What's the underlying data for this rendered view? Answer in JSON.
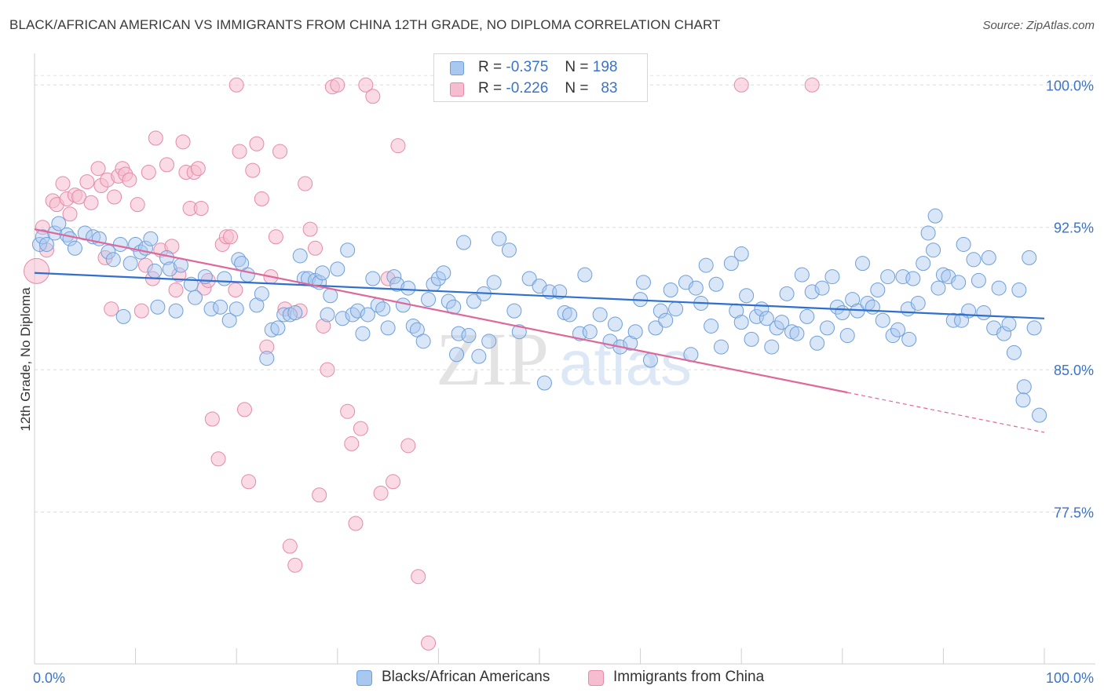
{
  "title": "BLACK/AFRICAN AMERICAN VS IMMIGRANTS FROM CHINA 12TH GRADE, NO DIPLOMA CORRELATION CHART",
  "source": "Source: ZipAtlas.com",
  "watermark": {
    "zip": "ZIP",
    "atlas": "atlas"
  },
  "legend": {
    "rows": [
      {
        "r_label": "R =",
        "r_value": "-0.375",
        "n_label": "N =",
        "n_value": "198",
        "color": "#a9c8ef",
        "border": "#6f9fd8"
      },
      {
        "r_label": "R =",
        "r_value": "-0.226",
        "n_label": "N =",
        "n_value": "83",
        "color": "#f6bdd0",
        "border": "#e58aa8"
      }
    ]
  },
  "bottom_legend": [
    {
      "label": "Blacks/African Americans",
      "color": "#a9c8ef",
      "border": "#6f9fd8"
    },
    {
      "label": "Immigrants from China",
      "color": "#f6bdd0",
      "border": "#e58aa8"
    }
  ],
  "chart_data": {
    "type": "scatter",
    "title": "BLACK/AFRICAN AMERICAN VS IMMIGRANTS FROM CHINA 12TH GRADE, NO DIPLOMA CORRELATION CHART",
    "xlabel": "",
    "ylabel": "12th Grade, No Diploma",
    "xlim": [
      0,
      100
    ],
    "ylim": [
      69.5,
      101.5
    ],
    "x_tick_labels": [
      "0.0%",
      "100.0%"
    ],
    "y_ticks": [
      {
        "value": 100.0,
        "label": "100.0%"
      },
      {
        "value": 92.5,
        "label": "92.5%"
      },
      {
        "value": 85.0,
        "label": "85.0%"
      },
      {
        "value": 77.5,
        "label": "77.5%"
      }
    ],
    "grid": "horizontal dashed",
    "legend_position": "top-center",
    "series": [
      {
        "name": "Blacks/African Americans",
        "color": "#6f9fd8",
        "fill": "#a9c8ef",
        "trend": {
          "x": [
            0,
            100
          ],
          "y": [
            90.1,
            87.7
          ]
        },
        "points": [
          [
            0.5,
            91.6
          ],
          [
            0.8,
            92.0
          ],
          [
            1.2,
            91.6
          ],
          [
            2.0,
            92.2
          ],
          [
            2.4,
            92.7
          ],
          [
            3.2,
            92.1
          ],
          [
            3.5,
            91.9
          ],
          [
            4.0,
            91.4
          ],
          [
            5.0,
            92.2
          ],
          [
            5.8,
            92.0
          ],
          [
            6.4,
            91.9
          ],
          [
            7.3,
            91.2
          ],
          [
            7.8,
            90.8
          ],
          [
            8.5,
            91.6
          ],
          [
            8.8,
            87.8
          ],
          [
            9.5,
            90.6
          ],
          [
            10.0,
            91.6
          ],
          [
            10.5,
            91.2
          ],
          [
            11.0,
            91.4
          ],
          [
            11.5,
            91.9
          ],
          [
            11.9,
            90.2
          ],
          [
            12.2,
            88.3
          ],
          [
            13.1,
            90.9
          ],
          [
            13.4,
            90.3
          ],
          [
            14.0,
            88.1
          ],
          [
            14.5,
            90.5
          ],
          [
            15.5,
            89.5
          ],
          [
            15.9,
            88.8
          ],
          [
            16.9,
            89.9
          ],
          [
            17.5,
            88.2
          ],
          [
            18.4,
            88.3
          ],
          [
            18.8,
            89.8
          ],
          [
            19.3,
            87.6
          ],
          [
            20.0,
            88.2
          ],
          [
            20.2,
            90.8
          ],
          [
            20.5,
            90.6
          ],
          [
            21.1,
            90.0
          ],
          [
            22.0,
            88.4
          ],
          [
            22.5,
            89.0
          ],
          [
            23.0,
            85.6
          ],
          [
            23.5,
            87.1
          ],
          [
            24.1,
            87.2
          ],
          [
            24.7,
            87.9
          ],
          [
            25.3,
            87.9
          ],
          [
            25.8,
            88.0
          ],
          [
            26.3,
            91.0
          ],
          [
            26.7,
            89.8
          ],
          [
            27.1,
            89.8
          ],
          [
            27.8,
            89.7
          ],
          [
            28.2,
            89.6
          ],
          [
            28.5,
            90.1
          ],
          [
            29.0,
            87.9
          ],
          [
            29.3,
            88.9
          ],
          [
            30.0,
            90.3
          ],
          [
            30.5,
            87.7
          ],
          [
            31.0,
            91.3
          ],
          [
            31.5,
            87.9
          ],
          [
            32.0,
            88.1
          ],
          [
            32.5,
            86.9
          ],
          [
            33.0,
            87.9
          ],
          [
            33.5,
            89.8
          ],
          [
            34.0,
            88.4
          ],
          [
            34.5,
            88.2
          ],
          [
            35.0,
            87.2
          ],
          [
            35.6,
            89.9
          ],
          [
            35.9,
            89.5
          ],
          [
            36.5,
            88.4
          ],
          [
            37.0,
            89.3
          ],
          [
            37.5,
            87.3
          ],
          [
            37.9,
            87.1
          ],
          [
            38.5,
            86.5
          ],
          [
            39.0,
            88.7
          ],
          [
            39.5,
            89.5
          ],
          [
            40.0,
            89.8
          ],
          [
            40.5,
            90.1
          ],
          [
            41.0,
            88.6
          ],
          [
            41.5,
            88.3
          ],
          [
            42.0,
            86.9
          ],
          [
            42.5,
            91.7
          ],
          [
            43.0,
            86.8
          ],
          [
            43.5,
            88.6
          ],
          [
            44.0,
            85.7
          ],
          [
            44.5,
            89.0
          ],
          [
            45.0,
            86.5
          ],
          [
            45.5,
            89.6
          ],
          [
            46.0,
            91.9
          ],
          [
            47.0,
            91.3
          ],
          [
            47.5,
            88.1
          ],
          [
            48.0,
            87.0
          ],
          [
            49.0,
            89.8
          ],
          [
            50.0,
            89.4
          ],
          [
            50.5,
            84.3
          ],
          [
            51.0,
            89.1
          ],
          [
            52.0,
            89.1
          ],
          [
            52.5,
            88.0
          ],
          [
            53.0,
            87.9
          ],
          [
            54.0,
            86.9
          ],
          [
            55.0,
            87.0
          ],
          [
            56.0,
            87.9
          ],
          [
            57.0,
            86.5
          ],
          [
            57.5,
            87.4
          ],
          [
            58.0,
            86.2
          ],
          [
            59.0,
            86.4
          ],
          [
            59.5,
            87.0
          ],
          [
            60.0,
            88.7
          ],
          [
            61.0,
            85.5
          ],
          [
            61.5,
            87.2
          ],
          [
            62.0,
            88.1
          ],
          [
            62.5,
            87.6
          ],
          [
            63.0,
            89.2
          ],
          [
            63.5,
            88.2
          ],
          [
            64.5,
            89.6
          ],
          [
            65.0,
            85.8
          ],
          [
            65.5,
            89.3
          ],
          [
            66.0,
            88.5
          ],
          [
            67.0,
            87.3
          ],
          [
            67.5,
            89.5
          ],
          [
            68.0,
            86.2
          ],
          [
            69.0,
            90.6
          ],
          [
            69.5,
            88.1
          ],
          [
            70.0,
            87.5
          ],
          [
            70.5,
            88.9
          ],
          [
            71.0,
            86.6
          ],
          [
            71.5,
            87.8
          ],
          [
            72.0,
            88.2
          ],
          [
            72.5,
            87.7
          ],
          [
            73.0,
            86.2
          ],
          [
            73.5,
            87.2
          ],
          [
            74.0,
            87.5
          ],
          [
            74.5,
            89.0
          ],
          [
            75.0,
            87.0
          ],
          [
            75.5,
            86.9
          ],
          [
            76.0,
            90.0
          ],
          [
            76.5,
            87.8
          ],
          [
            77.0,
            89.1
          ],
          [
            77.5,
            86.4
          ],
          [
            78.0,
            89.3
          ],
          [
            78.5,
            87.2
          ],
          [
            79.0,
            89.9
          ],
          [
            79.5,
            88.3
          ],
          [
            80.0,
            88.0
          ],
          [
            80.5,
            86.8
          ],
          [
            81.0,
            88.7
          ],
          [
            81.5,
            88.1
          ],
          [
            82.0,
            90.6
          ],
          [
            82.5,
            88.5
          ],
          [
            83.0,
            88.3
          ],
          [
            83.5,
            89.2
          ],
          [
            84.0,
            87.6
          ],
          [
            84.5,
            89.9
          ],
          [
            85.0,
            86.8
          ],
          [
            85.5,
            87.1
          ],
          [
            86.0,
            89.9
          ],
          [
            86.5,
            88.2
          ],
          [
            87.0,
            89.8
          ],
          [
            87.5,
            88.5
          ],
          [
            88.0,
            90.6
          ],
          [
            88.5,
            92.2
          ],
          [
            89.0,
            91.3
          ],
          [
            89.5,
            89.3
          ],
          [
            90.0,
            90.0
          ],
          [
            90.5,
            89.9
          ],
          [
            91.0,
            87.6
          ],
          [
            91.5,
            89.6
          ],
          [
            92.0,
            91.6
          ],
          [
            92.5,
            88.1
          ],
          [
            93.0,
            90.8
          ],
          [
            93.5,
            89.7
          ],
          [
            94.0,
            88.0
          ],
          [
            94.5,
            90.9
          ],
          [
            95.0,
            87.2
          ],
          [
            95.5,
            89.3
          ],
          [
            96.0,
            86.9
          ],
          [
            96.5,
            87.4
          ],
          [
            97.0,
            85.9
          ],
          [
            97.5,
            89.2
          ],
          [
            98.0,
            84.1
          ],
          [
            98.5,
            90.9
          ],
          [
            99.0,
            87.2
          ],
          [
            99.5,
            82.6
          ],
          [
            89.2,
            93.1
          ],
          [
            91.8,
            87.6
          ],
          [
            97.9,
            83.4
          ],
          [
            41.8,
            85.8
          ],
          [
            54.5,
            90.0
          ],
          [
            66.5,
            90.5
          ],
          [
            86.6,
            86.6
          ],
          [
            60.3,
            89.6
          ],
          [
            70.0,
            91.1
          ]
        ]
      },
      {
        "name": "Immigrants from China",
        "color": "#e58aa8",
        "fill": "#f6bdd0",
        "trend": {
          "x": [
            0,
            80.5
          ],
          "y": [
            92.4,
            83.8
          ]
        },
        "trend_dashed": {
          "x": [
            80.5,
            100
          ],
          "y": [
            83.8,
            81.7
          ]
        },
        "points": [
          [
            0.2,
            90.2
          ],
          [
            0.8,
            92.5
          ],
          [
            1.2,
            91.3
          ],
          [
            1.8,
            93.9
          ],
          [
            2.2,
            93.7
          ],
          [
            2.8,
            94.8
          ],
          [
            3.2,
            94.0
          ],
          [
            3.5,
            93.2
          ],
          [
            4.0,
            94.2
          ],
          [
            4.4,
            94.1
          ],
          [
            5.2,
            94.9
          ],
          [
            5.6,
            93.8
          ],
          [
            6.3,
            95.6
          ],
          [
            6.6,
            94.7
          ],
          [
            7.0,
            90.9
          ],
          [
            7.2,
            95.0
          ],
          [
            7.6,
            88.2
          ],
          [
            7.9,
            94.1
          ],
          [
            8.3,
            95.2
          ],
          [
            8.7,
            95.6
          ],
          [
            9.0,
            95.3
          ],
          [
            9.4,
            95.0
          ],
          [
            10.2,
            93.7
          ],
          [
            10.6,
            88.1
          ],
          [
            11.0,
            90.5
          ],
          [
            11.3,
            95.4
          ],
          [
            11.7,
            89.8
          ],
          [
            12.0,
            97.2
          ],
          [
            12.5,
            91.3
          ],
          [
            13.1,
            95.8
          ],
          [
            13.6,
            91.5
          ],
          [
            14.0,
            89.2
          ],
          [
            14.3,
            90.0
          ],
          [
            14.7,
            97.0
          ],
          [
            15.0,
            95.4
          ],
          [
            15.4,
            93.5
          ],
          [
            15.8,
            95.4
          ],
          [
            16.2,
            95.6
          ],
          [
            16.5,
            93.5
          ],
          [
            16.8,
            89.3
          ],
          [
            17.2,
            89.7
          ],
          [
            17.6,
            82.4
          ],
          [
            18.2,
            80.3
          ],
          [
            18.6,
            91.6
          ],
          [
            19.0,
            92.0
          ],
          [
            19.4,
            92.0
          ],
          [
            19.9,
            89.2
          ],
          [
            20.3,
            96.5
          ],
          [
            20.8,
            82.9
          ],
          [
            21.2,
            79.1
          ],
          [
            21.6,
            95.5
          ],
          [
            22.0,
            96.9
          ],
          [
            22.5,
            94.0
          ],
          [
            23.0,
            86.2
          ],
          [
            23.4,
            89.9
          ],
          [
            23.9,
            92.0
          ],
          [
            24.3,
            96.5
          ],
          [
            24.8,
            88.2
          ],
          [
            25.3,
            75.7
          ],
          [
            25.8,
            74.7
          ],
          [
            26.3,
            88.1
          ],
          [
            26.8,
            94.8
          ],
          [
            27.3,
            92.4
          ],
          [
            27.8,
            91.4
          ],
          [
            28.2,
            78.4
          ],
          [
            28.6,
            87.3
          ],
          [
            29.0,
            85.0
          ],
          [
            29.5,
            99.9
          ],
          [
            30.0,
            100.0
          ],
          [
            31.0,
            82.8
          ],
          [
            31.4,
            81.1
          ],
          [
            31.8,
            76.9
          ],
          [
            32.3,
            81.9
          ],
          [
            32.8,
            100.0
          ],
          [
            33.5,
            99.4
          ],
          [
            34.3,
            78.5
          ],
          [
            35.0,
            89.8
          ],
          [
            35.5,
            79.1
          ],
          [
            36.0,
            96.8
          ],
          [
            37.0,
            81.0
          ],
          [
            38.0,
            74.1
          ],
          [
            39.0,
            70.6
          ],
          [
            20.0,
            100.0
          ],
          [
            70.0,
            100.0
          ],
          [
            77.0,
            100.0
          ]
        ]
      }
    ]
  }
}
